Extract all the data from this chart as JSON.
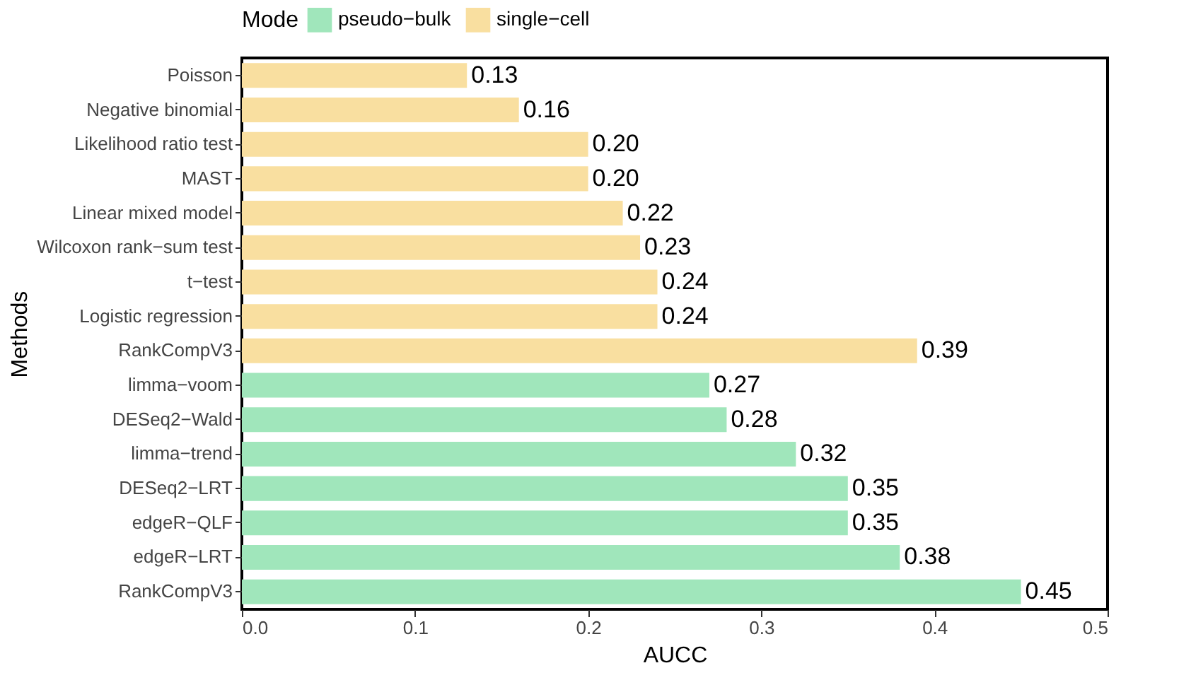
{
  "chart_data": {
    "type": "bar",
    "orientation": "horizontal",
    "xlabel": "AUCC",
    "ylabel": "Methods",
    "legend_title": "Mode",
    "legend": "top",
    "categories": [
      "Poisson",
      "Negative binomial",
      "Likelihood ratio test",
      "MAST",
      "Linear mixed model",
      "Wilcoxon rank−sum test",
      "t−test",
      "Logistic regression",
      "RankCompV3",
      "limma−voom",
      "DESeq2−Wald",
      "limma−trend",
      "DESeq2−LRT",
      "edgeR−QLF",
      "edgeR−LRT",
      "RankCompV3"
    ],
    "series": [
      {
        "name": "pseudo−bulk",
        "color": "#a0e6bb",
        "values": [
          null,
          null,
          null,
          null,
          null,
          null,
          null,
          null,
          null,
          0.27,
          0.28,
          0.32,
          0.35,
          0.35,
          0.38,
          0.45
        ],
        "value_labels": [
          null,
          null,
          null,
          null,
          null,
          null,
          null,
          null,
          null,
          "0.27",
          "0.28",
          "0.32",
          "0.35",
          "0.35",
          "0.38",
          "0.45"
        ]
      },
      {
        "name": "single−cell",
        "color": "#f9dfa0",
        "values": [
          0.13,
          0.16,
          0.2,
          0.2,
          0.22,
          0.23,
          0.24,
          0.24,
          0.39,
          null,
          null,
          null,
          null,
          null,
          null,
          null
        ],
        "value_labels": [
          "0.13",
          "0.16",
          "0.20",
          "0.20",
          "0.22",
          "0.23",
          "0.24",
          "0.24",
          "0.39",
          null,
          null,
          null,
          null,
          null,
          null,
          null
        ]
      }
    ],
    "xlim": [
      0,
      0.5
    ],
    "xticks": [
      {
        "value": 0,
        "label": "0.0"
      },
      {
        "value": 0.1,
        "label": "0.1"
      },
      {
        "value": 0.2,
        "label": "0.2"
      },
      {
        "value": 0.3,
        "label": "0.3"
      },
      {
        "value": 0.4,
        "label": "0.4"
      },
      {
        "value": 0.5,
        "label": "0.5"
      }
    ],
    "grid": false
  }
}
